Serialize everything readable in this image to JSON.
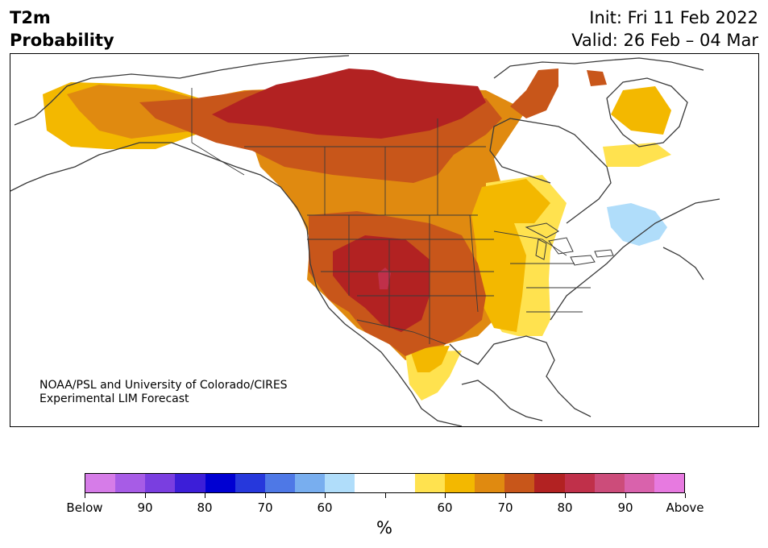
{
  "title": {
    "line1": "T2m",
    "line2": "Probability"
  },
  "forecast": {
    "init": "Init: Fri 11 Feb 2022",
    "valid": "Valid: 26 Feb – 04 Mar"
  },
  "credit": {
    "line1": "NOAA/PSL and University of Colorado/CIRES",
    "line2": "Experimental LIM Forecast"
  },
  "colorbar": {
    "colors": [
      "#d67ce8",
      "#a75ce6",
      "#7a3ee0",
      "#3c1ed8",
      "#0000d2",
      "#2638dc",
      "#4e78e6",
      "#78aeef",
      "#b0ddfa",
      "#ffffff",
      "#ffffff",
      "#ffe24f",
      "#f3b800",
      "#e08a10",
      "#c8561a",
      "#b22222",
      "#c0304a",
      "#cc4c7a",
      "#d962ac",
      "#e77ae0"
    ],
    "labels": [
      "Below",
      "90",
      "80",
      "70",
      "60",
      "",
      "60",
      "70",
      "80",
      "90",
      "Above"
    ],
    "unit": "%"
  },
  "map": {
    "legend_colors": {
      "above_60": "#ffe24f",
      "above_65": "#f3b800",
      "above_70": "#e08a10",
      "above_75": "#c8561a",
      "above_80": "#b22222",
      "above_85": "#c0304a",
      "below_60": "#b0ddfa"
    }
  }
}
